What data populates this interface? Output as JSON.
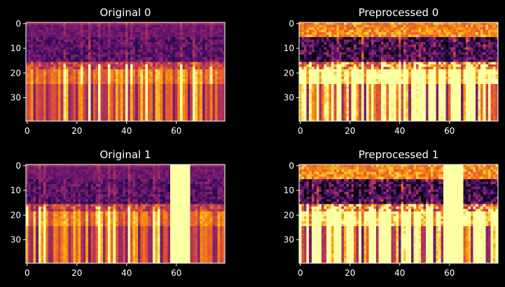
{
  "figure": {
    "background": "#000000",
    "text_color": "#ffffff",
    "colormap": "inferno"
  },
  "chart_data": [
    {
      "type": "heatmap",
      "title": "Original 0",
      "rows": 40,
      "cols": 80,
      "xticks": [
        0,
        20,
        40,
        60
      ],
      "yticks": [
        0,
        10,
        20,
        30
      ],
      "bright_band": null,
      "preprocessed": false,
      "seed": 11
    },
    {
      "type": "heatmap",
      "title": "Preprocessed 0",
      "rows": 40,
      "cols": 80,
      "xticks": [
        0,
        20,
        40,
        60
      ],
      "yticks": [
        0,
        10,
        20,
        30
      ],
      "bright_band": null,
      "preprocessed": true,
      "seed": 11
    },
    {
      "type": "heatmap",
      "title": "Original 1",
      "rows": 40,
      "cols": 80,
      "xticks": [
        0,
        20,
        40,
        60
      ],
      "yticks": [
        0,
        10,
        20,
        30
      ],
      "bright_band": [
        58,
        65
      ],
      "preprocessed": false,
      "seed": 23
    },
    {
      "type": "heatmap",
      "title": "Preprocessed 1",
      "rows": 40,
      "cols": 80,
      "xticks": [
        0,
        20,
        40,
        60
      ],
      "yticks": [
        0,
        10,
        20,
        30
      ],
      "bright_band": [
        58,
        65
      ],
      "preprocessed": true,
      "seed": 23
    }
  ]
}
